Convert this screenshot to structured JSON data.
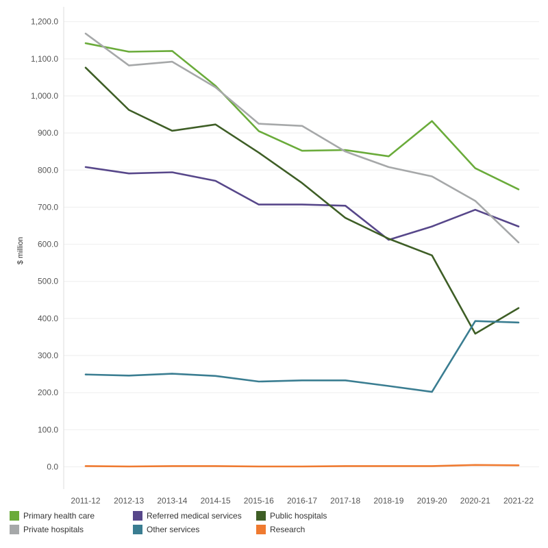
{
  "chart_data": {
    "type": "line",
    "title": "",
    "xlabel": "",
    "ylabel": "$ million",
    "ylim": [
      -60,
      1240
    ],
    "yticks": [
      0,
      100,
      200,
      300,
      400,
      500,
      600,
      700,
      800,
      900,
      1000,
      1100,
      1200
    ],
    "ytick_labels": [
      "0.0",
      "100.0",
      "200.0",
      "300.0",
      "400.0",
      "500.0",
      "600.0",
      "700.0",
      "800.0",
      "900.0",
      "1,000.0",
      "1,100.0",
      "1,200.0"
    ],
    "grid": true,
    "legend": "bottom",
    "categories": [
      "2011-12",
      "2012-13",
      "2013-14",
      "2014-15",
      "2015-16",
      "2016-17",
      "2017-18",
      "2018-19",
      "2019-20",
      "2020-21",
      "2021-22"
    ],
    "series": [
      {
        "name": "Primary health care",
        "color": "#6aab3a",
        "values": [
          1142,
          1119,
          1121,
          1027,
          905,
          852,
          854,
          837,
          932,
          805,
          748
        ]
      },
      {
        "name": "Referred medical services",
        "color": "#57478a",
        "values": [
          808,
          791,
          794,
          771,
          707,
          707,
          704,
          612,
          648,
          693,
          648
        ]
      },
      {
        "name": "Public hospitals",
        "color": "#3e5e26",
        "values": [
          1076,
          962,
          906,
          923,
          847,
          765,
          671,
          615,
          570,
          359,
          428
        ]
      },
      {
        "name": "Private hospitals",
        "color": "#a6a8a9",
        "values": [
          1168,
          1082,
          1092,
          1023,
          925,
          919,
          850,
          808,
          783,
          717,
          605
        ]
      },
      {
        "name": "Other services",
        "color": "#3a7d91",
        "values": [
          249,
          246,
          251,
          245,
          230,
          233,
          233,
          218,
          202,
          393,
          389
        ]
      },
      {
        "name": "Research",
        "color": "#ef7a30",
        "values": [
          2,
          1,
          2,
          2,
          1,
          1,
          2,
          2,
          2,
          5,
          4
        ]
      }
    ]
  }
}
